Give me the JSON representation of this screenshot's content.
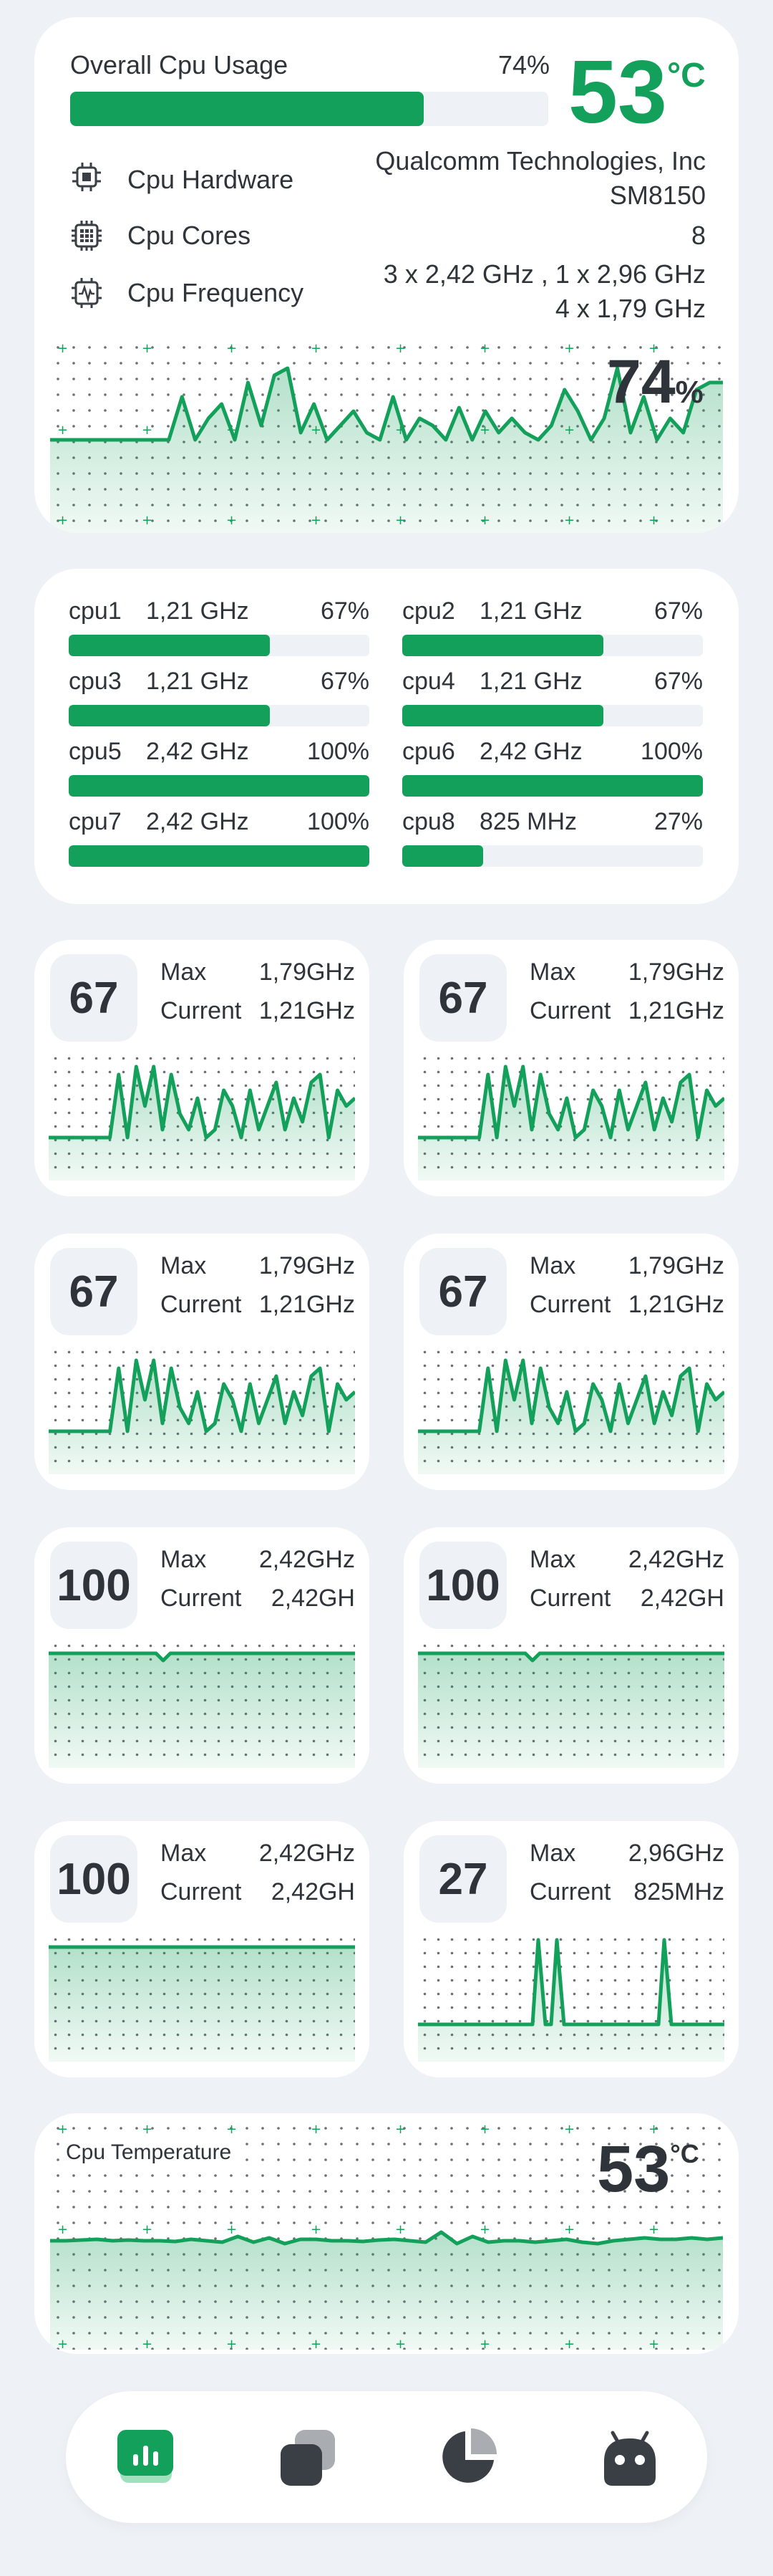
{
  "overview": {
    "title": "Overall Cpu Usage",
    "usage_percent": "74%",
    "usage_value": 74,
    "temperature_value": "53",
    "temperature_unit": "°C",
    "rows": [
      {
        "label": "Cpu Hardware",
        "value_line1": "Qualcomm Technologies, Inc",
        "value_line2": "SM8150",
        "icon": "chip-icon"
      },
      {
        "label": "Cpu Cores",
        "value_line1": "8",
        "value_line2": "",
        "icon": "cores-icon"
      },
      {
        "label": "Cpu Frequency",
        "value_line1": "3 x 2,42 GHz , 1 x 2,96 GHz",
        "value_line2": "4 x 1,79 GHz",
        "icon": "frequency-icon"
      }
    ],
    "graph_value": "74",
    "graph_unit": "%"
  },
  "cores": [
    {
      "name": "cpu1",
      "freq": "1,21 GHz",
      "percent": "67%",
      "value": 67
    },
    {
      "name": "cpu2",
      "freq": "1,21 GHz",
      "percent": "67%",
      "value": 67
    },
    {
      "name": "cpu3",
      "freq": "1,21 GHz",
      "percent": "67%",
      "value": 67
    },
    {
      "name": "cpu4",
      "freq": "1,21 GHz",
      "percent": "67%",
      "value": 67
    },
    {
      "name": "cpu5",
      "freq": "2,42 GHz",
      "percent": "100%",
      "value": 100
    },
    {
      "name": "cpu6",
      "freq": "2,42 GHz",
      "percent": "100%",
      "value": 100
    },
    {
      "name": "cpu7",
      "freq": "2,42 GHz",
      "percent": "100%",
      "value": 100
    },
    {
      "name": "cpu8",
      "freq": "825 MHz",
      "percent": "27%",
      "value": 27
    }
  ],
  "core_cards": [
    {
      "value": "67",
      "max_label": "Max",
      "max_value": "1,79GHz",
      "current_label": "Current",
      "current_value": "1,21GHz",
      "pattern": "wave"
    },
    {
      "value": "67",
      "max_label": "Max",
      "max_value": "1,79GHz",
      "current_label": "Current",
      "current_value": "1,21GHz",
      "pattern": "wave"
    },
    {
      "value": "67",
      "max_label": "Max",
      "max_value": "1,79GHz",
      "current_label": "Current",
      "current_value": "1,21GHz",
      "pattern": "wave"
    },
    {
      "value": "67",
      "max_label": "Max",
      "max_value": "1,79GHz",
      "current_label": "Current",
      "current_value": "1,21GHz",
      "pattern": "wave"
    },
    {
      "value": "100",
      "max_label": "Max",
      "max_value": "2,42GHz",
      "current_label": "Current",
      "current_value": "2,42GH",
      "pattern": "full-notch"
    },
    {
      "value": "100",
      "max_label": "Max",
      "max_value": "2,42GHz",
      "current_label": "Current",
      "current_value": "2,42GH",
      "pattern": "full-notch"
    },
    {
      "value": "100",
      "max_label": "Max",
      "max_value": "2,42GHz",
      "current_label": "Current",
      "current_value": "2,42GH",
      "pattern": "full"
    },
    {
      "value": "27",
      "max_label": "Max",
      "max_value": "2,96GHz",
      "current_label": "Current",
      "current_value": "825MHz",
      "pattern": "spikes"
    }
  ],
  "temperature": {
    "title": "Cpu Temperature",
    "value": "53",
    "unit": "°C"
  },
  "nav": {
    "items": [
      {
        "name": "cpu-usage",
        "icon": "bar-chart-icon",
        "active": true
      },
      {
        "name": "apps",
        "icon": "apps-icon",
        "active": false
      },
      {
        "name": "stats",
        "icon": "pie-chart-icon",
        "active": false
      },
      {
        "name": "android",
        "icon": "android-icon",
        "active": false
      }
    ]
  },
  "colors": {
    "accent": "#13a05a",
    "background": "#eef2f7",
    "card": "#ffffff",
    "text": "#2f343a"
  }
}
